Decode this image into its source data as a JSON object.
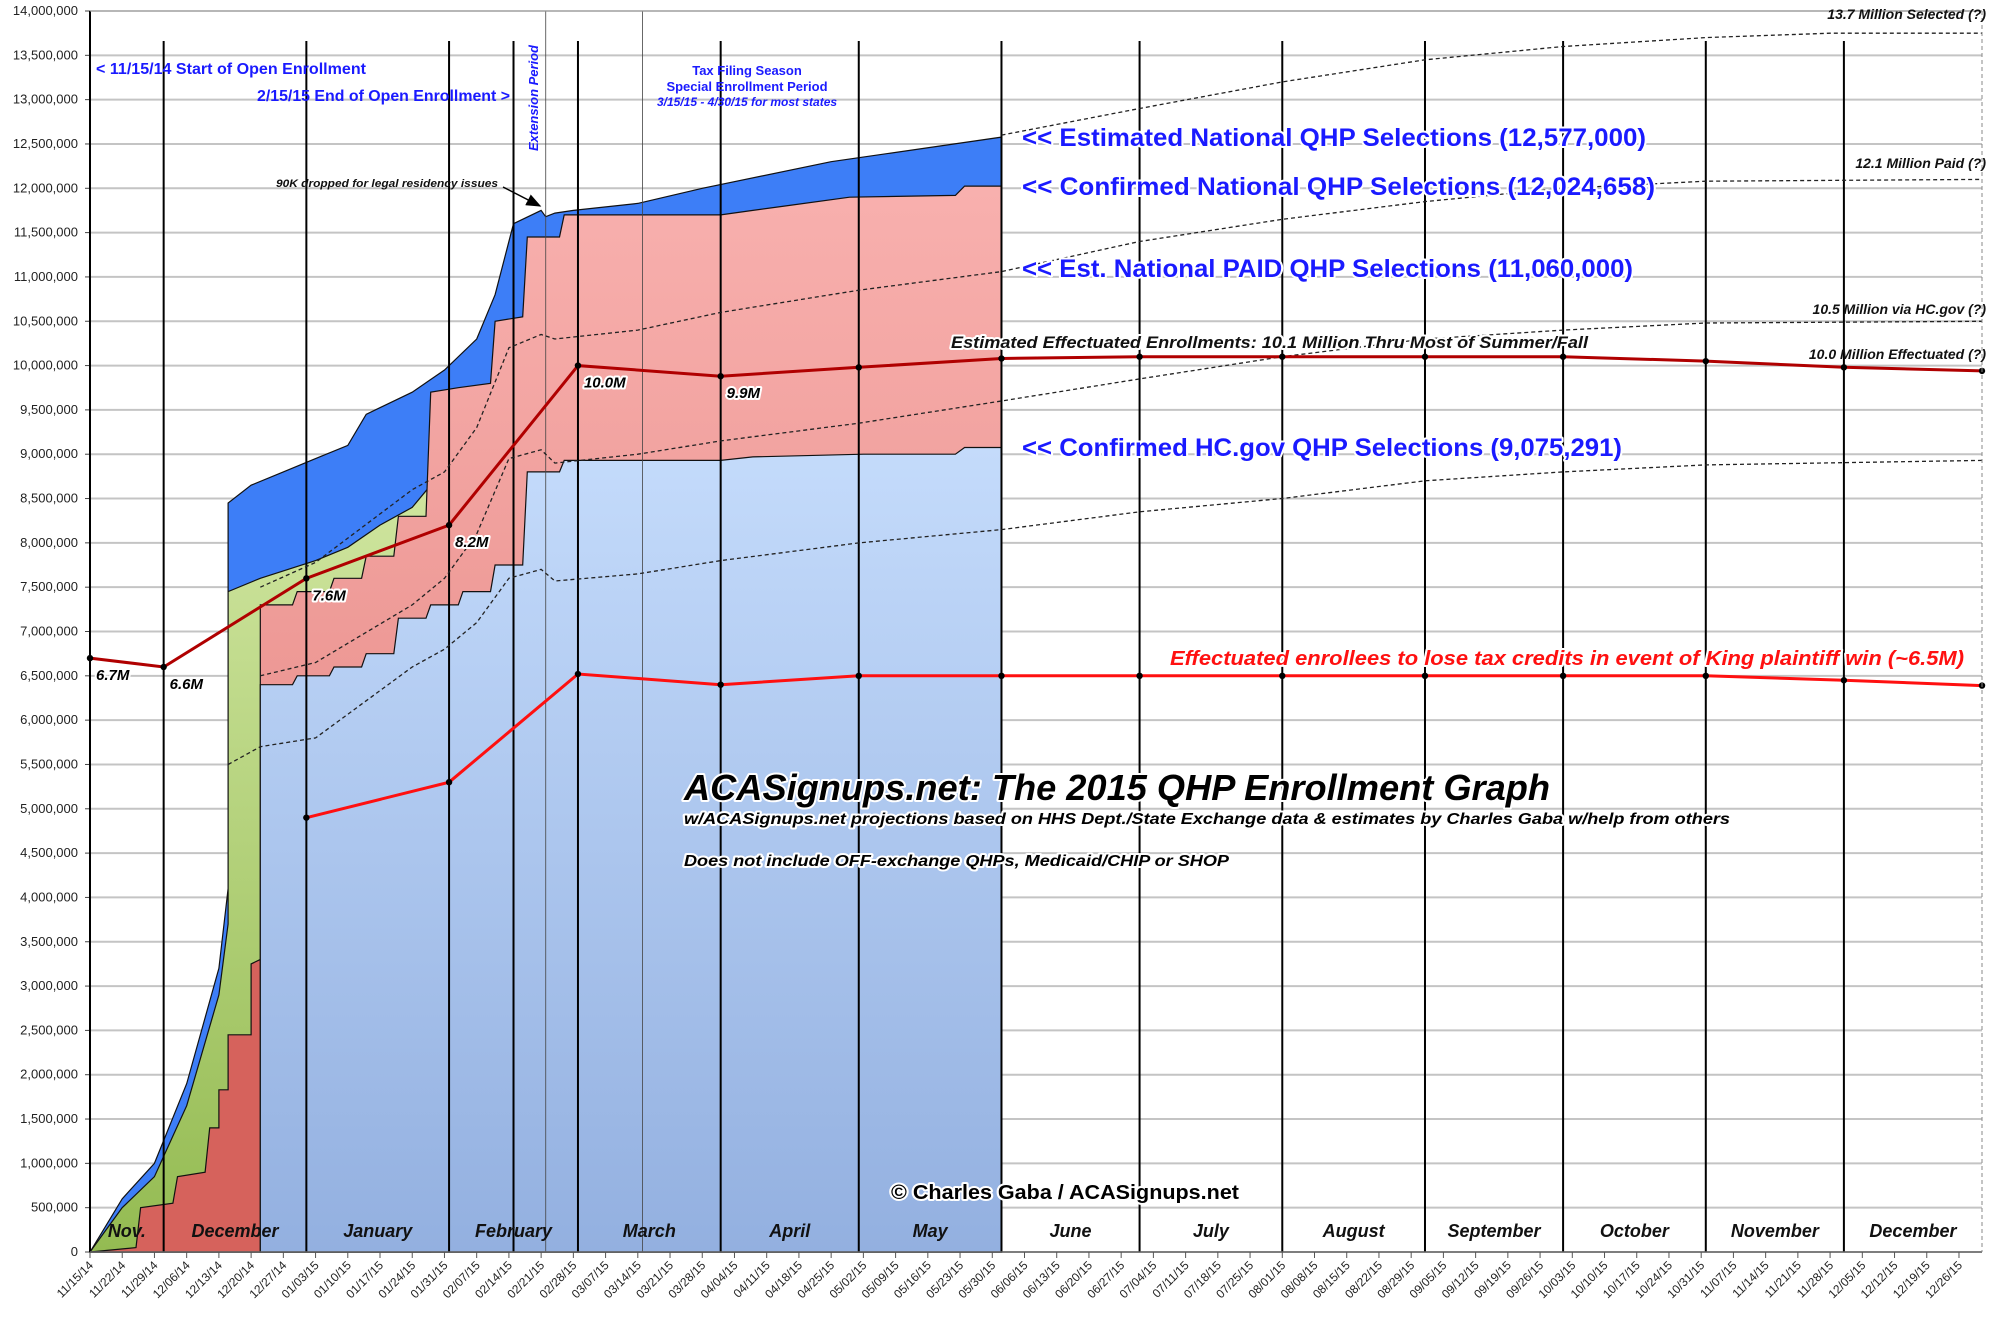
{
  "chart_data": {
    "type": "area",
    "title": "ACASignups.net: The 2015 QHP Enrollment Graph",
    "subtitle": "w/ACASignups.net projections based on HHS Dept./State Exchange data & estimates by Charles Gaba w/help from others",
    "note": "Does not include OFF-exchange QHPs, Medicaid/CHIP or SHOP",
    "copyright": "© Charles Gaba / ACASignups.net",
    "xlim": [
      "2014-11-15",
      "2015-12-31"
    ],
    "ylim": [
      0,
      14000000
    ],
    "grid": true,
    "colors": {
      "est_national": "#3d7ef7",
      "green": "#c4dd8e",
      "confirmed_national": "#f5a8a8",
      "red_early": "#d6625c",
      "hcgov_top": "#c4dbfb",
      "hcgov_bottom": "#93b0e0",
      "effectuated_line": "#b00000",
      "tax_credit_line": "#ff1010",
      "label_blue": "#1a1aff"
    },
    "y_tick_labels": [
      "0",
      "500,000",
      "1,000,000",
      "1,500,000",
      "2,000,000",
      "2,500,000",
      "3,000,000",
      "3,500,000",
      "4,000,000",
      "4,500,000",
      "5,000,000",
      "5,500,000",
      "6,000,000",
      "6,500,000",
      "7,000,000",
      "7,500,000",
      "8,000,000",
      "8,500,000",
      "9,000,000",
      "9,500,000",
      "10,000,000",
      "10,500,000",
      "11,000,000",
      "11,500,000",
      "12,000,000",
      "12,500,000",
      "13,000,000",
      "13,500,000",
      "14,000,000"
    ],
    "x_tick_labels": [
      "11/15/14",
      "11/22/14",
      "11/29/14",
      "12/06/14",
      "12/13/14",
      "12/20/14",
      "12/27/14",
      "01/03/15",
      "01/10/15",
      "01/17/15",
      "01/24/15",
      "01/31/15",
      "02/07/15",
      "02/14/15",
      "02/21/15",
      "02/28/15",
      "03/07/15",
      "03/14/15",
      "03/21/15",
      "03/28/15",
      "04/04/15",
      "04/11/15",
      "04/18/15",
      "04/25/15",
      "05/02/15",
      "05/09/15",
      "05/16/15",
      "05/23/15",
      "05/30/15",
      "06/06/15",
      "06/13/15",
      "06/20/15",
      "06/27/15",
      "07/04/15",
      "07/11/15",
      "07/18/15",
      "07/25/15",
      "08/01/15",
      "08/08/15",
      "08/15/15",
      "08/22/15",
      "08/29/15",
      "09/05/15",
      "09/12/15",
      "09/19/15",
      "09/26/15",
      "10/03/15",
      "10/10/15",
      "10/17/15",
      "10/24/15",
      "10/31/15",
      "11/07/15",
      "11/14/15",
      "11/21/15",
      "11/28/15",
      "12/05/15",
      "12/12/15",
      "12/19/15",
      "12/26/15"
    ],
    "months": [
      {
        "label": "Nov.",
        "start": "2014-11-15",
        "end": "2014-12-01"
      },
      {
        "label": "December",
        "start": "2014-12-01",
        "end": "2015-01-01"
      },
      {
        "label": "January",
        "start": "2015-01-01",
        "end": "2015-02-01"
      },
      {
        "label": "February",
        "start": "2015-02-01",
        "end": "2015-03-01"
      },
      {
        "label": "March",
        "start": "2015-03-01",
        "end": "2015-04-01"
      },
      {
        "label": "April",
        "start": "2015-04-01",
        "end": "2015-05-01"
      },
      {
        "label": "May",
        "start": "2015-05-01",
        "end": "2015-06-01"
      },
      {
        "label": "June",
        "start": "2015-06-01",
        "end": "2015-07-01"
      },
      {
        "label": "July",
        "start": "2015-07-01",
        "end": "2015-08-01"
      },
      {
        "label": "August",
        "start": "2015-08-01",
        "end": "2015-09-01"
      },
      {
        "label": "September",
        "start": "2015-09-01",
        "end": "2015-10-01"
      },
      {
        "label": "October",
        "start": "2015-10-01",
        "end": "2015-11-01"
      },
      {
        "label": "November",
        "start": "2015-11-01",
        "end": "2015-12-01"
      },
      {
        "label": "December",
        "start": "2015-12-01",
        "end": "2015-12-31"
      }
    ],
    "dividers_major": [
      "2014-12-01",
      "2015-01-01",
      "2015-02-01",
      "2015-02-15",
      "2015-03-01",
      "2015-04-01",
      "2015-05-01",
      "2015-06-01",
      "2015-07-01",
      "2015-08-01",
      "2015-09-01",
      "2015-10-01",
      "2015-11-01",
      "2015-12-01"
    ],
    "dividers_minor": [
      "2015-02-22",
      "2015-03-15"
    ],
    "areas": [
      {
        "key": "est_national",
        "name": "<< Estimated National QHP Selections (12,577,000)",
        "points": [
          [
            "2014-11-15",
            0
          ],
          [
            "2014-11-22",
            600000
          ],
          [
            "2014-11-29",
            1000000
          ],
          [
            "2014-12-06",
            1900000
          ],
          [
            "2014-12-13",
            3200000
          ],
          [
            "2014-12-15",
            4100000
          ],
          [
            "2014-12-15",
            8450000
          ],
          [
            "2014-12-20",
            8650000
          ],
          [
            "2014-12-27",
            8800000
          ],
          [
            "2015-01-03",
            8950000
          ],
          [
            "2015-01-10",
            9100000
          ],
          [
            "2015-01-14",
            9450000
          ],
          [
            "2015-01-24",
            9700000
          ],
          [
            "2015-01-31",
            9950000
          ],
          [
            "2015-02-07",
            10300000
          ],
          [
            "2015-02-11",
            10800000
          ],
          [
            "2015-02-15",
            11600000
          ],
          [
            "2015-02-21",
            11750000
          ],
          [
            "2015-02-22",
            11680000
          ],
          [
            "2015-02-24",
            11720000
          ],
          [
            "2015-02-28",
            11750000
          ],
          [
            "2015-03-14",
            11830000
          ],
          [
            "2015-03-28",
            12000000
          ],
          [
            "2015-04-25",
            12300000
          ],
          [
            "2015-06-01",
            12577000
          ]
        ]
      },
      {
        "key": "green",
        "points": [
          [
            "2014-11-15",
            0
          ],
          [
            "2014-11-22",
            500000
          ],
          [
            "2014-11-29",
            850000
          ],
          [
            "2014-12-06",
            1650000
          ],
          [
            "2014-12-13",
            2900000
          ],
          [
            "2014-12-15",
            3700000
          ],
          [
            "2014-12-15",
            7450000
          ],
          [
            "2014-12-22",
            7600000
          ],
          [
            "2015-01-03",
            7800000
          ],
          [
            "2015-01-10",
            7950000
          ],
          [
            "2015-01-17",
            8200000
          ],
          [
            "2015-01-24",
            8400000
          ],
          [
            "2015-01-28",
            8650000
          ]
        ]
      },
      {
        "key": "confirmed_national",
        "name": "<< Confirmed National QHP Selections (12,024,658)",
        "points": [
          [
            "2014-12-22",
            7300000
          ],
          [
            "2014-12-29",
            7300000
          ],
          [
            "2014-12-30",
            7450000
          ],
          [
            "2015-01-06",
            7450000
          ],
          [
            "2015-01-07",
            7600000
          ],
          [
            "2015-01-13",
            7600000
          ],
          [
            "2015-01-14",
            7850000
          ],
          [
            "2015-01-20",
            7850000
          ],
          [
            "2015-01-21",
            8300000
          ],
          [
            "2015-01-27",
            8300000
          ],
          [
            "2015-01-28",
            9700000
          ],
          [
            "2015-02-03",
            9750000
          ],
          [
            "2015-02-10",
            9800000
          ],
          [
            "2015-02-11",
            10500000
          ],
          [
            "2015-02-17",
            10550000
          ],
          [
            "2015-02-18",
            11450000
          ],
          [
            "2015-02-25",
            11450000
          ],
          [
            "2015-02-26",
            11700000
          ],
          [
            "2015-04-01",
            11700000
          ],
          [
            "2015-04-08",
            11750000
          ],
          [
            "2015-04-15",
            11800000
          ],
          [
            "2015-04-29",
            11900000
          ],
          [
            "2015-05-22",
            11920000
          ],
          [
            "2015-05-24",
            12024658
          ],
          [
            "2015-06-01",
            12024658
          ]
        ]
      },
      {
        "key": "red_early",
        "points": [
          [
            "2014-11-15",
            0
          ],
          [
            "2014-11-25",
            50000
          ],
          [
            "2014-11-26",
            500000
          ],
          [
            "2014-12-03",
            550000
          ],
          [
            "2014-12-04",
            850000
          ],
          [
            "2014-12-10",
            900000
          ],
          [
            "2014-12-11",
            1400000
          ],
          [
            "2014-12-13",
            1400000
          ],
          [
            "2014-12-13",
            1830000
          ],
          [
            "2014-12-15",
            1830000
          ],
          [
            "2014-12-15",
            2450000
          ],
          [
            "2014-12-20",
            2450000
          ],
          [
            "2014-12-20",
            3250000
          ],
          [
            "2014-12-22",
            3300000
          ]
        ]
      },
      {
        "key": "hcgov",
        "name": "<< Confirmed HC.gov QHP Selections (9,075,291)",
        "points": [
          [
            "2014-12-22",
            6400000
          ],
          [
            "2014-12-29",
            6400000
          ],
          [
            "2014-12-30",
            6500000
          ],
          [
            "2015-01-06",
            6500000
          ],
          [
            "2015-01-07",
            6600000
          ],
          [
            "2015-01-13",
            6600000
          ],
          [
            "2015-01-14",
            6750000
          ],
          [
            "2015-01-20",
            6750000
          ],
          [
            "2015-01-21",
            7150000
          ],
          [
            "2015-01-27",
            7150000
          ],
          [
            "2015-01-28",
            7300000
          ],
          [
            "2015-02-03",
            7300000
          ],
          [
            "2015-02-04",
            7450000
          ],
          [
            "2015-02-10",
            7450000
          ],
          [
            "2015-02-11",
            7750000
          ],
          [
            "2015-02-17",
            7750000
          ],
          [
            "2015-02-18",
            8800000
          ],
          [
            "2015-02-25",
            8800000
          ],
          [
            "2015-02-26",
            8930000
          ],
          [
            "2015-04-01",
            8930000
          ],
          [
            "2015-04-08",
            8970000
          ],
          [
            "2015-05-02",
            9000000
          ],
          [
            "2015-05-22",
            9000000
          ],
          [
            "2015-05-24",
            9075291
          ],
          [
            "2015-06-01",
            9075291
          ]
        ]
      }
    ],
    "paid_label": "<< Est. National PAID QHP Selections (11,060,000)",
    "projections": [
      {
        "name": "13.7 Million Selected (?)",
        "points": [
          [
            "2015-06-01",
            12600000
          ],
          [
            "2015-07-01",
            12900000
          ],
          [
            "2015-08-01",
            13200000
          ],
          [
            "2015-09-01",
            13450000
          ],
          [
            "2015-10-01",
            13600000
          ],
          [
            "2015-11-01",
            13700000
          ],
          [
            "2015-11-28",
            13750000
          ],
          [
            "2015-12-31",
            13750000
          ]
        ]
      },
      {
        "name": "12.1 Million Paid (?)",
        "points": [
          [
            "2014-12-22",
            7500000
          ],
          [
            "2015-01-03",
            7780000
          ],
          [
            "2015-01-24",
            8600000
          ],
          [
            "2015-01-31",
            8800000
          ],
          [
            "2015-02-07",
            9300000
          ],
          [
            "2015-02-14",
            10200000
          ],
          [
            "2015-02-21",
            10350000
          ],
          [
            "2015-02-24",
            10300000
          ],
          [
            "2015-03-14",
            10400000
          ],
          [
            "2015-04-01",
            10600000
          ],
          [
            "2015-05-01",
            10850000
          ],
          [
            "2015-06-01",
            11060000
          ],
          [
            "2015-07-01",
            11400000
          ],
          [
            "2015-08-01",
            11650000
          ],
          [
            "2015-09-01",
            11850000
          ],
          [
            "2015-10-01",
            12000000
          ],
          [
            "2015-11-01",
            12080000
          ],
          [
            "2015-12-31",
            12100000
          ]
        ]
      },
      {
        "name": "10.5 Million via HC.gov (?)",
        "points": [
          [
            "2014-12-22",
            6500000
          ],
          [
            "2015-01-03",
            6650000
          ],
          [
            "2015-01-24",
            7300000
          ],
          [
            "2015-01-31",
            7600000
          ],
          [
            "2015-02-07",
            8100000
          ],
          [
            "2015-02-14",
            8950000
          ],
          [
            "2015-02-21",
            9050000
          ],
          [
            "2015-02-24",
            8900000
          ],
          [
            "2015-03-14",
            9000000
          ],
          [
            "2015-04-01",
            9150000
          ],
          [
            "2015-05-01",
            9350000
          ],
          [
            "2015-06-01",
            9600000
          ],
          [
            "2015-07-01",
            9850000
          ],
          [
            "2015-08-01",
            10100000
          ],
          [
            "2015-09-01",
            10300000
          ],
          [
            "2015-10-01",
            10400000
          ],
          [
            "2015-11-01",
            10480000
          ],
          [
            "2015-12-31",
            10500000
          ]
        ]
      },
      {
        "points": [
          [
            "2014-12-15",
            5500000
          ],
          [
            "2014-12-22",
            5700000
          ],
          [
            "2015-01-03",
            5800000
          ],
          [
            "2015-01-24",
            6600000
          ],
          [
            "2015-01-31",
            6800000
          ],
          [
            "2015-02-07",
            7100000
          ],
          [
            "2015-02-14",
            7600000
          ],
          [
            "2015-02-21",
            7700000
          ],
          [
            "2015-02-24",
            7570000
          ],
          [
            "2015-03-14",
            7650000
          ],
          [
            "2015-04-01",
            7800000
          ],
          [
            "2015-05-01",
            8000000
          ],
          [
            "2015-06-01",
            8150000
          ],
          [
            "2015-07-01",
            8350000
          ],
          [
            "2015-08-01",
            8500000
          ],
          [
            "2015-09-01",
            8700000
          ],
          [
            "2015-10-01",
            8800000
          ],
          [
            "2015-11-01",
            8880000
          ],
          [
            "2015-12-31",
            8930000
          ]
        ]
      }
    ],
    "effectuated": {
      "name": "10.0 Million Effectuated (?)",
      "annotation": "Estimated Effectuated Enrollments: 10.1 Million Thru Most of Summer/Fall",
      "points": [
        {
          "date": "2014-11-15",
          "value": 6700000,
          "label": "6.7M"
        },
        {
          "date": "2014-12-01",
          "value": 6600000,
          "label": "6.6M"
        },
        {
          "date": "2015-01-01",
          "value": 7600000,
          "label": "7.6M"
        },
        {
          "date": "2015-02-01",
          "value": 8200000,
          "label": "8.2M"
        },
        {
          "date": "2015-03-01",
          "value": 10000000,
          "label": "10.0M"
        },
        {
          "date": "2015-04-01",
          "value": 9880000,
          "label": "9.9M"
        },
        {
          "date": "2015-05-01",
          "value": 9980000
        },
        {
          "date": "2015-06-01",
          "value": 10080000
        },
        {
          "date": "2015-07-01",
          "value": 10100000
        },
        {
          "date": "2015-08-01",
          "value": 10100000
        },
        {
          "date": "2015-09-01",
          "value": 10100000
        },
        {
          "date": "2015-10-01",
          "value": 10100000
        },
        {
          "date": "2015-11-01",
          "value": 10050000
        },
        {
          "date": "2015-12-01",
          "value": 9980000
        },
        {
          "date": "2015-12-31",
          "value": 9940000
        }
      ]
    },
    "tax_credit_loss": {
      "name": "Effectuated enrollees to lose tax credits in event of King plaintiff win (~6.5M)",
      "points": [
        [
          "2015-01-01",
          4900000
        ],
        [
          "2015-02-01",
          5300000
        ],
        [
          "2015-03-01",
          6520000
        ],
        [
          "2015-04-01",
          6400000
        ],
        [
          "2015-05-01",
          6500000
        ],
        [
          "2015-06-01",
          6500000
        ],
        [
          "2015-07-01",
          6500000
        ],
        [
          "2015-08-01",
          6500000
        ],
        [
          "2015-09-01",
          6500000
        ],
        [
          "2015-10-01",
          6500000
        ],
        [
          "2015-11-01",
          6500000
        ],
        [
          "2015-12-01",
          6450000
        ],
        [
          "2015-12-31",
          6390000
        ]
      ]
    },
    "annotations": {
      "start_oe": "< 11/15/14 Start of Open Enrollment",
      "end_oe": "2/15/15 End of Open Enrollment >",
      "extension": "Extension Period",
      "tax_1": "Tax Filing Season",
      "tax_2": "Special Enrollment Period",
      "tax_3": "3/15/15 - 4/30/15 for most states",
      "dropped": "90K dropped for legal residency issues"
    }
  }
}
